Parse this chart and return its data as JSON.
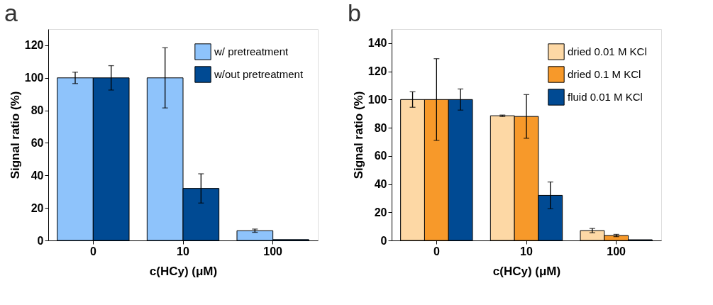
{
  "chart_data": [
    {
      "type": "bar",
      "title": "a",
      "xlabel": "c(HCy) (μM)",
      "ylabel": "Signal ratio (%)",
      "categories": [
        "0",
        "10",
        "100"
      ],
      "ylim": [
        0,
        130
      ],
      "yticks": [
        0,
        20,
        40,
        60,
        80,
        100,
        120
      ],
      "grid": false,
      "legend": "top right",
      "series": [
        {
          "name": "w/ pretreatment",
          "color": "#8ec3fb",
          "values": [
            100,
            100,
            6
          ],
          "errors": [
            3.5,
            18.5,
            1
          ]
        },
        {
          "name": "w/out pretreatment",
          "color": "#004a93",
          "values": [
            100,
            32,
            0.5
          ],
          "errors": [
            7.5,
            9,
            null
          ]
        }
      ]
    },
    {
      "type": "bar",
      "title": "b",
      "xlabel": "c(HCy) (μM)",
      "ylabel": "Signal ratio (%)",
      "categories": [
        "0",
        "10",
        "100"
      ],
      "ylim": [
        0,
        150
      ],
      "yticks": [
        0,
        20,
        40,
        60,
        80,
        100,
        120,
        140
      ],
      "grid": false,
      "legend": "top right",
      "series": [
        {
          "name": "dried 0.01 M KCl",
          "color": "#fdd8a5",
          "values": [
            100,
            88.5,
            7
          ],
          "errors": [
            5.5,
            0.5,
            1.5
          ]
        },
        {
          "name": "dried 0.1 M KCl",
          "color": "#f7992a",
          "values": [
            100,
            88,
            3.5
          ],
          "errors": [
            29,
            15.5,
            0.8
          ]
        },
        {
          "name": "fluid 0.01 M KCl",
          "color": "#004a93",
          "values": [
            100,
            32,
            0.5
          ],
          "errors": [
            7.5,
            9.5,
            null
          ]
        }
      ]
    }
  ]
}
